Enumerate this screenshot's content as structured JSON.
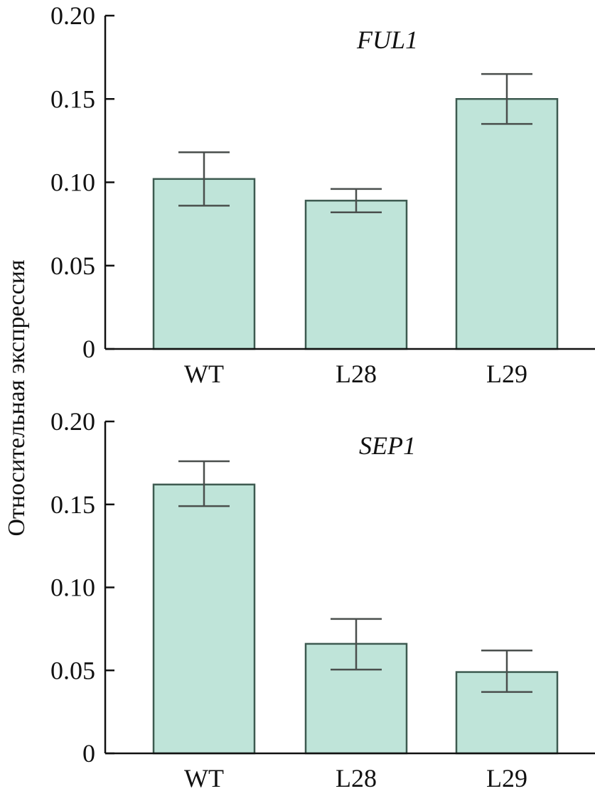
{
  "ylabel": "Относительная экспрессия",
  "colors": {
    "bar_fill": "#bfe4d9",
    "bar_stroke": "#3d5a50",
    "error": "#4a4f4d",
    "axis": "#111111"
  },
  "chart_data": [
    {
      "type": "bar",
      "title": "FUL1",
      "categories": [
        "WT",
        "L28",
        "L29"
      ],
      "values": [
        0.102,
        0.089,
        0.15
      ],
      "error_low": [
        0.086,
        0.082,
        0.135
      ],
      "error_high": [
        0.118,
        0.096,
        0.165
      ],
      "ylim": [
        0,
        0.2
      ],
      "yticks": [
        "0",
        "0.05",
        "0.10",
        "0.15",
        "0.20"
      ],
      "grid": false
    },
    {
      "type": "bar",
      "title": "SEP1",
      "categories": [
        "WT",
        "L28",
        "L29"
      ],
      "values": [
        0.162,
        0.066,
        0.049
      ],
      "error_low": [
        0.149,
        0.0505,
        0.037
      ],
      "error_high": [
        0.176,
        0.081,
        0.062
      ],
      "ylim": [
        0,
        0.2
      ],
      "yticks": [
        "0",
        "0.05",
        "0.10",
        "0.15",
        "0.20"
      ],
      "grid": false
    }
  ]
}
